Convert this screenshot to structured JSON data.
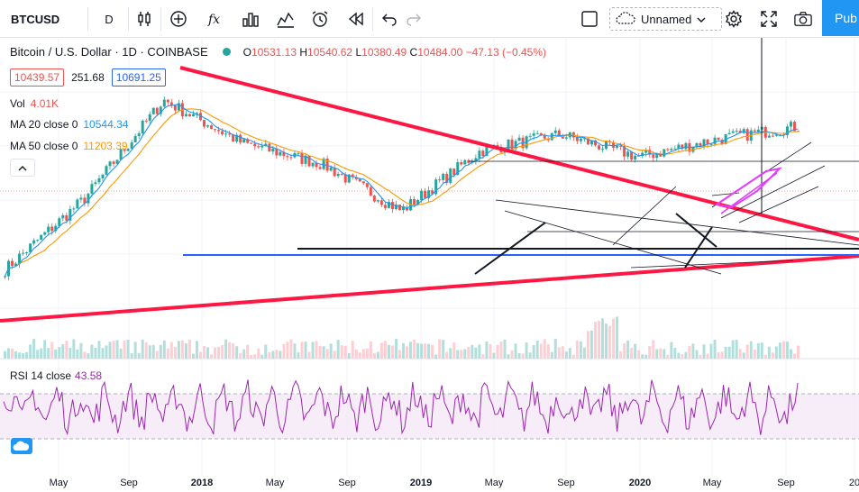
{
  "toolbar": {
    "symbol": "BTCUSD",
    "interval": "D",
    "layout_name": "Unnamed",
    "publish_label": "Pub",
    "icons": [
      "candles-icon",
      "add-indicator-icon",
      "fx-icon",
      "bar-chart-icon",
      "compare-icon",
      "alert-icon",
      "replay-icon",
      "undo-icon",
      "redo-icon",
      "checkbox-icon",
      "cloud-icon",
      "chevron-down-icon",
      "gear-icon",
      "fullscreen-icon",
      "camera-icon"
    ]
  },
  "legend": {
    "title": "Bitcoin / U.S. Dollar · 1D · COINBASE",
    "open_key": "O",
    "open": "10531.13",
    "high_key": "H",
    "high": "10540.62",
    "low_key": "L",
    "low": "10380.49",
    "close_key": "C",
    "close": "10484.00",
    "change": "−47.13 (−0.45%)",
    "bid": "10439.57",
    "spread": "251.68",
    "ask": "10691.25"
  },
  "indicators": {
    "vol_label": "Vol",
    "vol_value": "4.01K",
    "ma20_label": "MA 20 close 0",
    "ma20_value": "10544.34",
    "ma50_label": "MA 50 close 0",
    "ma50_value": "11203.39",
    "rsi_label": "RSI 14 close",
    "rsi_value": "43.58"
  },
  "x_axis": {
    "labels": [
      "May",
      "Sep",
      "2018",
      "May",
      "Sep",
      "2019",
      "May",
      "Sep",
      "2020",
      "May",
      "Sep",
      "20"
    ]
  },
  "colors": {
    "up": "#26a69a",
    "down": "#ef5350",
    "ma20": "#2196f3",
    "ma50": "#ff9800",
    "trend_red": "#ff1744",
    "support_blue": "#2962ff",
    "rsi": "#9c27b0",
    "channel_magenta": "#e040fb"
  },
  "chart_data": {
    "type": "line",
    "x": [
      "2017-05",
      "2017-09",
      "2018-01",
      "2018-05",
      "2018-09",
      "2019-01",
      "2019-05",
      "2019-09",
      "2020-01",
      "2020-05",
      "2020-09"
    ],
    "series": [
      {
        "values": [
          1800,
          4300,
          14500,
          8500,
          6600,
          3700,
          7800,
          9500,
          7200,
          9000,
          10500
        ]
      }
    ],
    "rsi_bands": [
      30,
      70
    ]
  }
}
